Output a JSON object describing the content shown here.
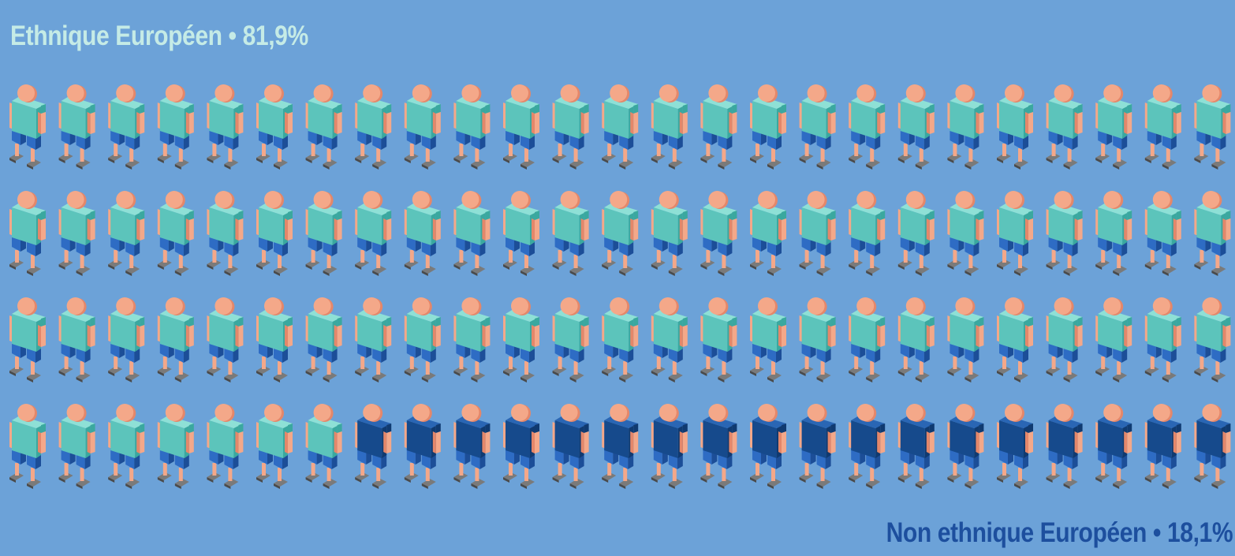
{
  "chart_data": {
    "type": "pictogram",
    "total_icons": 100,
    "categories": [
      "Ethnique Européen",
      "Non ethnique Européen"
    ],
    "values": [
      81.9,
      18.1
    ],
    "icon_counts": [
      82,
      18
    ],
    "labels": {
      "european": "Ethnique Européen • 81,9%",
      "non_european": "Non ethnique Européen • 18,1%"
    },
    "rows": 4,
    "columns": 25,
    "colors": {
      "background": "#6ca2d8",
      "european_shirt": "#5cc4bb",
      "european_shirt_shadow": "#3aa89f",
      "european_shoulder": "#8ee0d6",
      "non_european_shirt": "#164a8c",
      "non_european_shirt_shadow": "#103a70",
      "non_european_shoulder": "#2a66b4",
      "skin": "#f4a889",
      "skin_shadow": "#e4876a",
      "pants": "#2e6cc4",
      "pants_shadow": "#1c4e98",
      "shoes": "#7a7a7a",
      "shoes_shadow": "#4a4a4a",
      "label_european": "#c5ebe6",
      "label_non_european": "#1d4f9e"
    }
  }
}
